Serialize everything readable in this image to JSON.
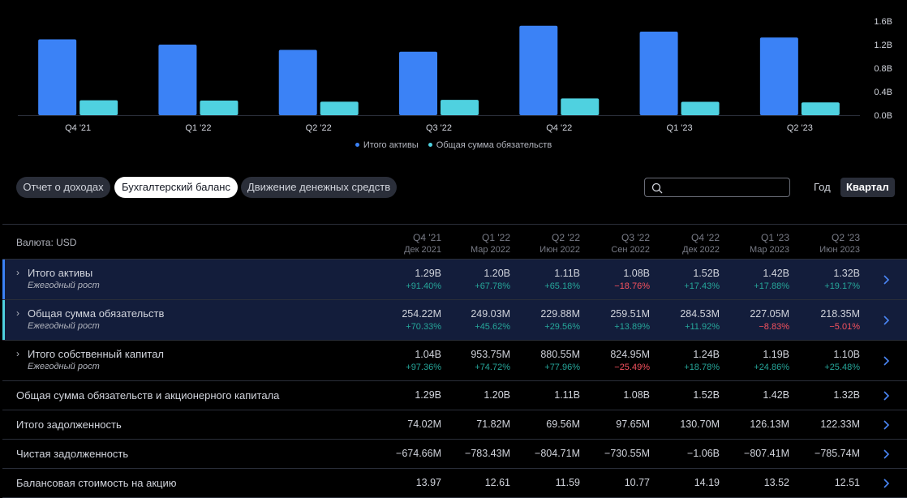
{
  "chart_data": {
    "type": "bar",
    "categories": [
      "Q4 '21",
      "Q1 '22",
      "Q2 '22",
      "Q3 '22",
      "Q4 '22",
      "Q1 '23",
      "Q2 '23"
    ],
    "series": [
      {
        "name": "Итого активы",
        "color": "#3b82f6",
        "values": [
          1.29,
          1.2,
          1.11,
          1.08,
          1.52,
          1.42,
          1.32
        ]
      },
      {
        "name": "Общая сумма обязательств",
        "color": "#4fd1e0",
        "values": [
          0.254,
          0.249,
          0.23,
          0.26,
          0.285,
          0.227,
          0.218
        ]
      }
    ],
    "yticks": [
      "1.6B",
      "1.2B",
      "0.8B",
      "0.4B",
      "0.0B"
    ],
    "ylim": [
      0,
      1.6
    ],
    "ylabel": "",
    "xlabel": ""
  },
  "tabs": [
    {
      "label": "Отчет о доходах",
      "active": false
    },
    {
      "label": "Бухгалтерский баланс",
      "active": true
    },
    {
      "label": "Движение денежных средств",
      "active": false
    }
  ],
  "search": {
    "placeholder": ""
  },
  "period": {
    "year": "Год",
    "quarter": "Квартал"
  },
  "table": {
    "currency_label": "Валюта: USD",
    "columns": [
      {
        "q": "Q4 '21",
        "d": "Дек 2021"
      },
      {
        "q": "Q1 '22",
        "d": "Мар 2022"
      },
      {
        "q": "Q2 '22",
        "d": "Июн 2022"
      },
      {
        "q": "Q3 '22",
        "d": "Сен 2022"
      },
      {
        "q": "Q4 '22",
        "d": "Дек 2022"
      },
      {
        "q": "Q1 '23",
        "d": "Мар 2023"
      },
      {
        "q": "Q2 '23",
        "d": "Июн 2023"
      }
    ],
    "rows": [
      {
        "name": "Итого активы",
        "expandable": true,
        "highlight": "#3b82f6",
        "sub": "Ежегодный рост",
        "values": [
          "1.29B",
          "1.20B",
          "1.11B",
          "1.08B",
          "1.52B",
          "1.42B",
          "1.32B"
        ],
        "growth": [
          "+91.40%",
          "+67.78%",
          "+65.18%",
          "−18.76%",
          "+17.43%",
          "+17.88%",
          "+19.17%"
        ]
      },
      {
        "name": "Общая сумма обязательств",
        "expandable": true,
        "highlight": "#4fd1e0",
        "sub": "Ежегодный рост",
        "values": [
          "254.22M",
          "249.03M",
          "229.88M",
          "259.51M",
          "284.53M",
          "227.05M",
          "218.35M"
        ],
        "growth": [
          "+70.33%",
          "+45.62%",
          "+29.56%",
          "+13.89%",
          "+11.92%",
          "−8.83%",
          "−5.01%"
        ]
      },
      {
        "name": "Итого собственный капитал",
        "expandable": true,
        "highlight": "",
        "sub": "Ежегодный рост",
        "values": [
          "1.04B",
          "953.75M",
          "880.55M",
          "824.95M",
          "1.24B",
          "1.19B",
          "1.10B"
        ],
        "growth": [
          "+97.36%",
          "+74.72%",
          "+77.96%",
          "−25.49%",
          "+18.78%",
          "+24.86%",
          "+25.48%"
        ]
      },
      {
        "name": "Общая сумма обязательств и акционерного капитала",
        "expandable": false,
        "highlight": "",
        "values": [
          "1.29B",
          "1.20B",
          "1.11B",
          "1.08B",
          "1.52B",
          "1.42B",
          "1.32B"
        ]
      },
      {
        "name": "Итого задолженность",
        "expandable": false,
        "highlight": "",
        "values": [
          "74.02M",
          "71.82M",
          "69.56M",
          "97.65M",
          "130.70M",
          "126.13M",
          "122.33M"
        ]
      },
      {
        "name": "Чистая задолженность",
        "expandable": false,
        "highlight": "",
        "values": [
          "−674.66M",
          "−783.43M",
          "−804.71M",
          "−730.55M",
          "−1.06B",
          "−807.41M",
          "−785.74M"
        ]
      },
      {
        "name": "Балансовая стоимость на акцию",
        "expandable": false,
        "highlight": "",
        "values": [
          "13.97",
          "12.61",
          "11.59",
          "10.77",
          "14.19",
          "13.52",
          "12.51"
        ]
      }
    ]
  }
}
